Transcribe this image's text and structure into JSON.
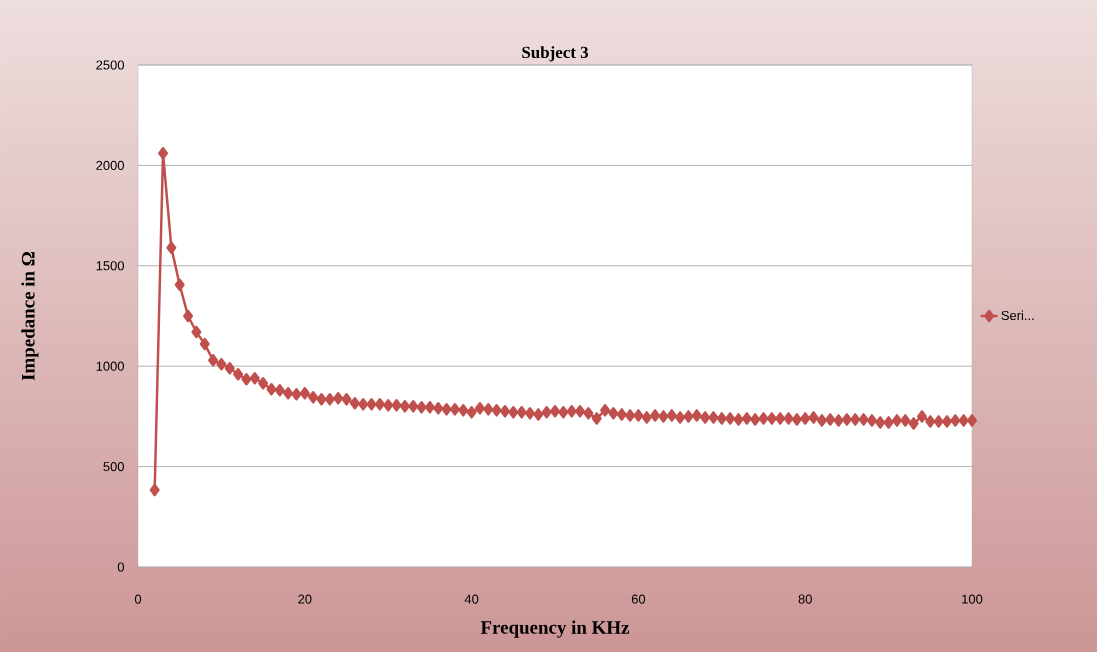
{
  "chart_data": {
    "type": "line",
    "title": "Subject 3",
    "xlabel": "Frequency in KHz",
    "ylabel": "Impedance in Ω",
    "xlim": [
      0,
      100
    ],
    "xticks": [
      0,
      20,
      40,
      60,
      80,
      100
    ],
    "ylim": [
      0,
      2500
    ],
    "yticks": [
      0,
      500,
      1000,
      1500,
      2000,
      2500
    ],
    "grid": "y",
    "legend": "right",
    "marker": "diamond",
    "line_style": "solid",
    "series": [
      {
        "name": "Seri...",
        "color": "#c0504d",
        "x": [
          2,
          3,
          4,
          5,
          6,
          7,
          8,
          9,
          10,
          11,
          12,
          13,
          14,
          15,
          16,
          17,
          18,
          19,
          20,
          21,
          22,
          23,
          24,
          25,
          26,
          27,
          28,
          29,
          30,
          31,
          32,
          33,
          34,
          35,
          36,
          37,
          38,
          39,
          40,
          41,
          42,
          43,
          44,
          45,
          46,
          47,
          48,
          49,
          50,
          51,
          52,
          53,
          54,
          55,
          56,
          57,
          58,
          59,
          60,
          61,
          62,
          63,
          64,
          65,
          66,
          67,
          68,
          69,
          70,
          71,
          72,
          73,
          74,
          75,
          76,
          77,
          78,
          79,
          80,
          81,
          82,
          83,
          84,
          85,
          86,
          87,
          88,
          89,
          90,
          91,
          92,
          93,
          94,
          95,
          96,
          97,
          98,
          99,
          100
        ],
        "values": [
          383,
          2060,
          1590,
          1405,
          1250,
          1170,
          1110,
          1030,
          1010,
          990,
          960,
          935,
          940,
          915,
          885,
          880,
          865,
          860,
          865,
          845,
          835,
          835,
          840,
          835,
          815,
          810,
          810,
          810,
          805,
          805,
          800,
          800,
          795,
          795,
          790,
          785,
          785,
          780,
          770,
          790,
          785,
          780,
          775,
          770,
          770,
          765,
          760,
          770,
          775,
          770,
          775,
          775,
          765,
          740,
          780,
          765,
          760,
          755,
          755,
          745,
          755,
          750,
          755,
          745,
          750,
          755,
          745,
          745,
          740,
          740,
          735,
          740,
          735,
          740,
          740,
          740,
          740,
          735,
          740,
          745,
          730,
          735,
          730,
          735,
          735,
          735,
          730,
          720,
          720,
          730,
          730,
          715,
          750,
          725,
          725,
          725,
          730,
          730,
          730
        ]
      }
    ]
  }
}
